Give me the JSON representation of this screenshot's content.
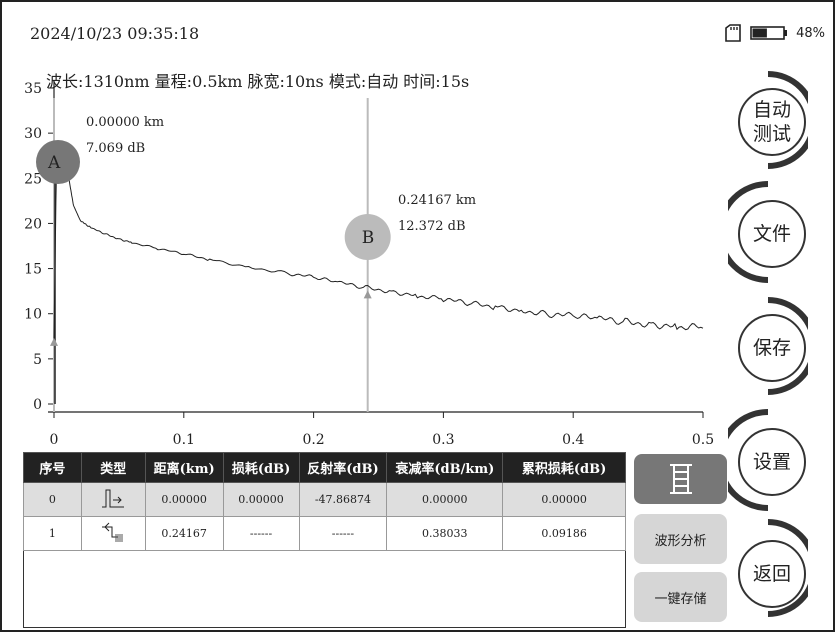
{
  "status_bar": {
    "datetime": "2024/10/23 09:35:18",
    "battery_percent": "48%",
    "battery_level": 0.48
  },
  "params_line": "波长:1310nm 量程:0.5km 脉宽:10ns 模式:自动 时间:15s",
  "markers": {
    "a": {
      "letter": "A",
      "distance": "0.00000 km",
      "loss": "7.069 dB"
    },
    "b": {
      "letter": "B",
      "distance": "0.24167 km",
      "loss": "12.372 dB"
    }
  },
  "chart_data": {
    "type": "line",
    "title": "",
    "xlabel": "",
    "ylabel": "",
    "xlim": [
      0,
      0.5
    ],
    "ylim": [
      0,
      35
    ],
    "x_ticks": [
      "0",
      "0.1",
      "0.2",
      "0.3",
      "0.4",
      "0.5"
    ],
    "y_ticks": [
      "0",
      "5",
      "10",
      "15",
      "20",
      "25",
      "30",
      "35"
    ],
    "series": [
      {
        "x": [
          0,
          0.002,
          0.005,
          0.008,
          0.01,
          0.012,
          0.015,
          0.02,
          0.025,
          0.03,
          0.04,
          0.05,
          0.06,
          0.08,
          0.1,
          0.12,
          0.15,
          0.18,
          0.2,
          0.22,
          0.24,
          0.26,
          0.28,
          0.3,
          0.32,
          0.34,
          0.36,
          0.38,
          0.4,
          0.42,
          0.44,
          0.46,
          0.48,
          0.5
        ],
        "y": [
          7.1,
          27.5,
          27.2,
          27.0,
          26.2,
          24.5,
          22.0,
          20.4,
          19.8,
          19.4,
          18.8,
          18.3,
          17.9,
          17.2,
          16.6,
          16.0,
          15.2,
          14.5,
          14.0,
          13.4,
          12.9,
          12.5,
          12.0,
          11.6,
          11.1,
          10.8,
          10.4,
          10.0,
          9.7,
          9.4,
          9.1,
          8.9,
          8.6,
          8.4
        ]
      }
    ],
    "marker_a_x": 0.0,
    "marker_b_x": 0.24167,
    "grid": false
  },
  "side_buttons": {
    "auto_test": [
      "自动",
      "测试"
    ],
    "file": "文件",
    "save": "保存",
    "settings": "设置",
    "back": "返回"
  },
  "table": {
    "headers": [
      "序号",
      "类型",
      "距离(km)",
      "损耗(dB)",
      "反射率(dB)",
      "衰减率(dB/km)",
      "累积损耗(dB)"
    ],
    "rows": [
      {
        "index": "0",
        "type_icon": "start-event-icon",
        "distance": "0.00000",
        "loss": "0.00000",
        "reflectance": "-47.86874",
        "attenuation": "0.00000",
        "cumulative": "0.00000"
      },
      {
        "index": "1",
        "type_icon": "end-event-icon",
        "distance": "0.24167",
        "loss": "------",
        "reflectance": "------",
        "attenuation": "0.38033",
        "cumulative": "0.09186"
      }
    ]
  },
  "tools": {
    "event_list_icon": "ladder-icon",
    "waveform_analysis": "波形分析",
    "one_key_save": "一键存储"
  }
}
